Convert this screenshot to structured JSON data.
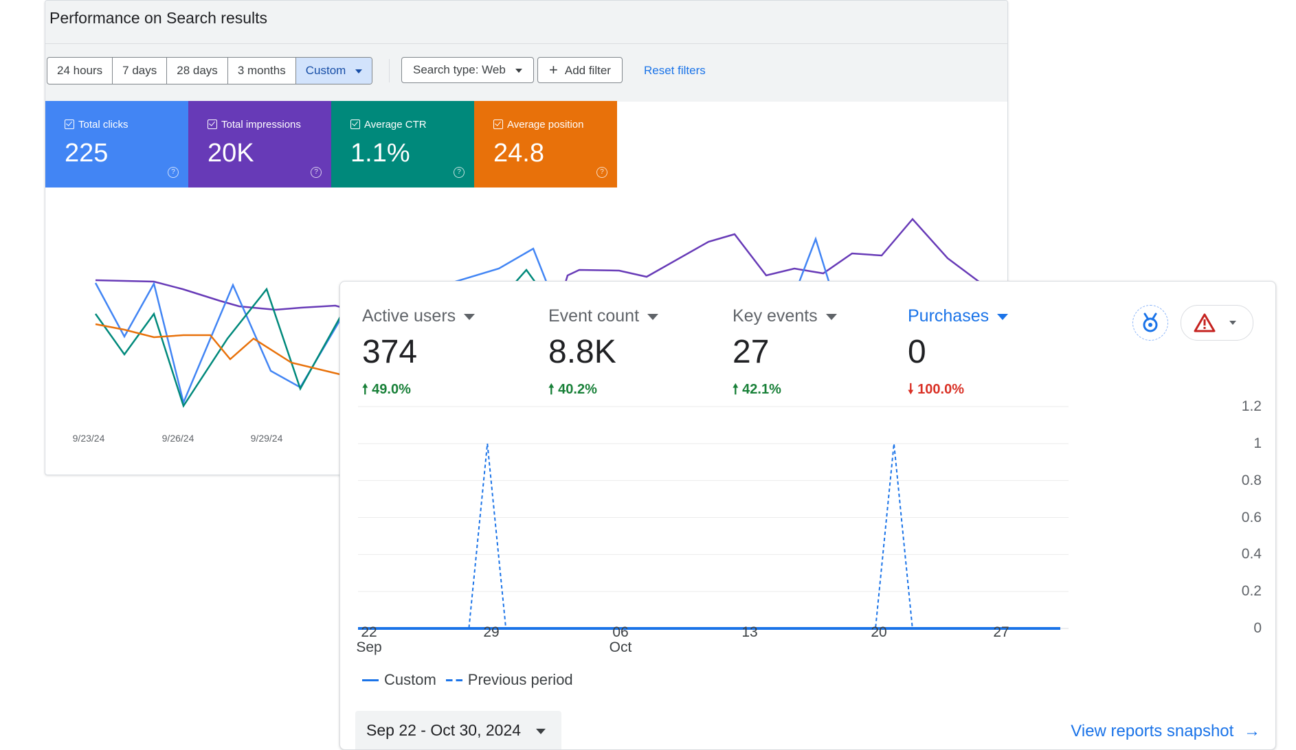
{
  "search_console": {
    "title": "Performance on Search results",
    "date_ranges": [
      "24 hours",
      "7 days",
      "28 days",
      "3 months",
      "Custom"
    ],
    "active_range": "Custom",
    "search_type": "Search type: Web",
    "add_filter": "Add filter",
    "reset_filters": "Reset filters",
    "tiles": [
      {
        "label": "Total clicks",
        "value": "225",
        "color": "#4285f4"
      },
      {
        "label": "Total impressions",
        "value": "20K",
        "color": "#673ab7"
      },
      {
        "label": "Average CTR",
        "value": "1.1%",
        "color": "#00897b"
      },
      {
        "label": "Average position",
        "value": "24.8",
        "color": "#e8710a"
      }
    ],
    "x_dates": [
      "9/23/24",
      "9/26/24",
      "9/29/24"
    ]
  },
  "analytics": {
    "metrics": [
      {
        "label": "Active users",
        "value": "374",
        "delta": "49.0%",
        "direction": "up"
      },
      {
        "label": "Event count",
        "value": "8.8K",
        "delta": "40.2%",
        "direction": "up"
      },
      {
        "label": "Key events",
        "value": "27",
        "delta": "42.1%",
        "direction": "up"
      },
      {
        "label": "Purchases",
        "value": "0",
        "delta": "100.0%",
        "direction": "down",
        "selected": true
      }
    ],
    "legend": {
      "current": "Custom",
      "previous": "Previous period"
    },
    "date_range": "Sep 22 - Oct 30, 2024",
    "snapshot_link": "View reports snapshot"
  },
  "chart_data": [
    {
      "type": "line",
      "title": "Purchases",
      "x": [
        "Sep 22",
        "Sep 23",
        "Sep 24",
        "Sep 25",
        "Sep 26",
        "Sep 27",
        "Sep 28",
        "Sep 29",
        "Sep 30",
        "Oct 1",
        "Oct 2",
        "Oct 3",
        "Oct 4",
        "Oct 5",
        "Oct 6",
        "Oct 7",
        "Oct 8",
        "Oct 9",
        "Oct 10",
        "Oct 11",
        "Oct 12",
        "Oct 13",
        "Oct 14",
        "Oct 15",
        "Oct 16",
        "Oct 17",
        "Oct 18",
        "Oct 19",
        "Oct 20",
        "Oct 21",
        "Oct 22",
        "Oct 23",
        "Oct 24",
        "Oct 25",
        "Oct 26",
        "Oct 27",
        "Oct 28",
        "Oct 29",
        "Oct 30"
      ],
      "x_ticks": [
        "22\nSep",
        "29",
        "06\nOct",
        "13",
        "20",
        "27"
      ],
      "series": [
        {
          "name": "Custom",
          "values": [
            0,
            0,
            0,
            0,
            0,
            0,
            0,
            0,
            0,
            0,
            0,
            0,
            0,
            0,
            0,
            0,
            0,
            0,
            0,
            0,
            0,
            0,
            0,
            0,
            0,
            0,
            0,
            0,
            0,
            0,
            0,
            0,
            0,
            0,
            0,
            0,
            0,
            0,
            0
          ]
        },
        {
          "name": "Previous period",
          "values": [
            0,
            0,
            0,
            0,
            0,
            0,
            0,
            1,
            0,
            0,
            0,
            0,
            0,
            0,
            0,
            0,
            0,
            0,
            0,
            0,
            0,
            0,
            0,
            0,
            0,
            0,
            0,
            0,
            0,
            1,
            0,
            0,
            0,
            0,
            0,
            0,
            0,
            0,
            0
          ]
        }
      ],
      "ylim": [
        0,
        1.2
      ],
      "y_ticks": [
        0,
        0.2,
        0.4,
        0.6,
        0.8,
        1,
        1.2
      ],
      "y_axis_side": "right",
      "grid": true
    }
  ]
}
